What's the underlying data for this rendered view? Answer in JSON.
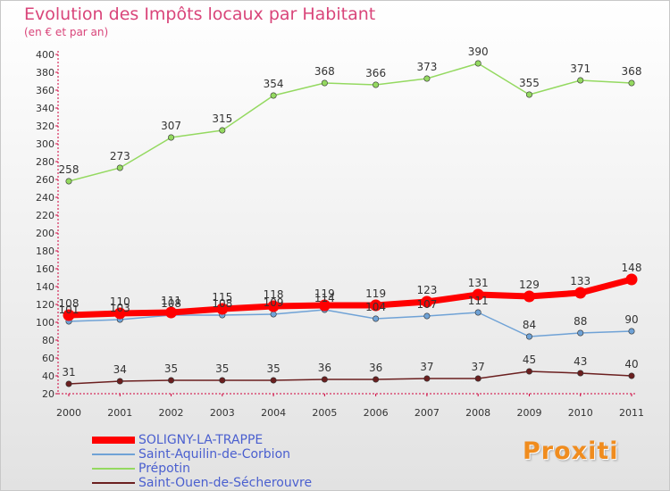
{
  "header": {
    "title": "Evolution des Impôts locaux par Habitant",
    "subtitle": "(en € et par an)"
  },
  "logo": {
    "text": "Proxiti",
    "color": "#f08c1e"
  },
  "chart_data": {
    "type": "line",
    "title": "Evolution des Impôts locaux par Habitant",
    "subtitle": "(en € et par an)",
    "xlabel": "",
    "ylabel": "",
    "categories": [
      "2000",
      "2001",
      "2002",
      "2003",
      "2004",
      "2005",
      "2006",
      "2007",
      "2008",
      "2009",
      "2010",
      "2011"
    ],
    "ylim": [
      20,
      400
    ],
    "yticks": [
      20,
      40,
      60,
      80,
      100,
      120,
      140,
      160,
      180,
      200,
      220,
      240,
      260,
      280,
      300,
      320,
      340,
      360,
      380,
      400
    ],
    "grid": false,
    "legend_position": "bottom-left",
    "series": [
      {
        "name": "SOLIGNY-LA-TRAPPE",
        "color": "#ff0000",
        "emphasis": true,
        "values": [
          108,
          110,
          111,
          115,
          118,
          119,
          119,
          123,
          131,
          129,
          133,
          148
        ]
      },
      {
        "name": "Saint-Aquilin-de-Corbion",
        "color": "#6fa2d6",
        "emphasis": false,
        "values": [
          101,
          103,
          108,
          108,
          109,
          114,
          104,
          107,
          111,
          84,
          88,
          90
        ]
      },
      {
        "name": "Prépotin",
        "color": "#94d960",
        "emphasis": false,
        "values": [
          258,
          273,
          307,
          315,
          354,
          368,
          366,
          373,
          390,
          355,
          371,
          368
        ]
      },
      {
        "name": "Saint-Ouen-de-Sécherouvre",
        "color": "#6b1f1f",
        "emphasis": false,
        "values": [
          31,
          34,
          35,
          35,
          35,
          36,
          36,
          37,
          37,
          45,
          43,
          40
        ]
      }
    ]
  }
}
